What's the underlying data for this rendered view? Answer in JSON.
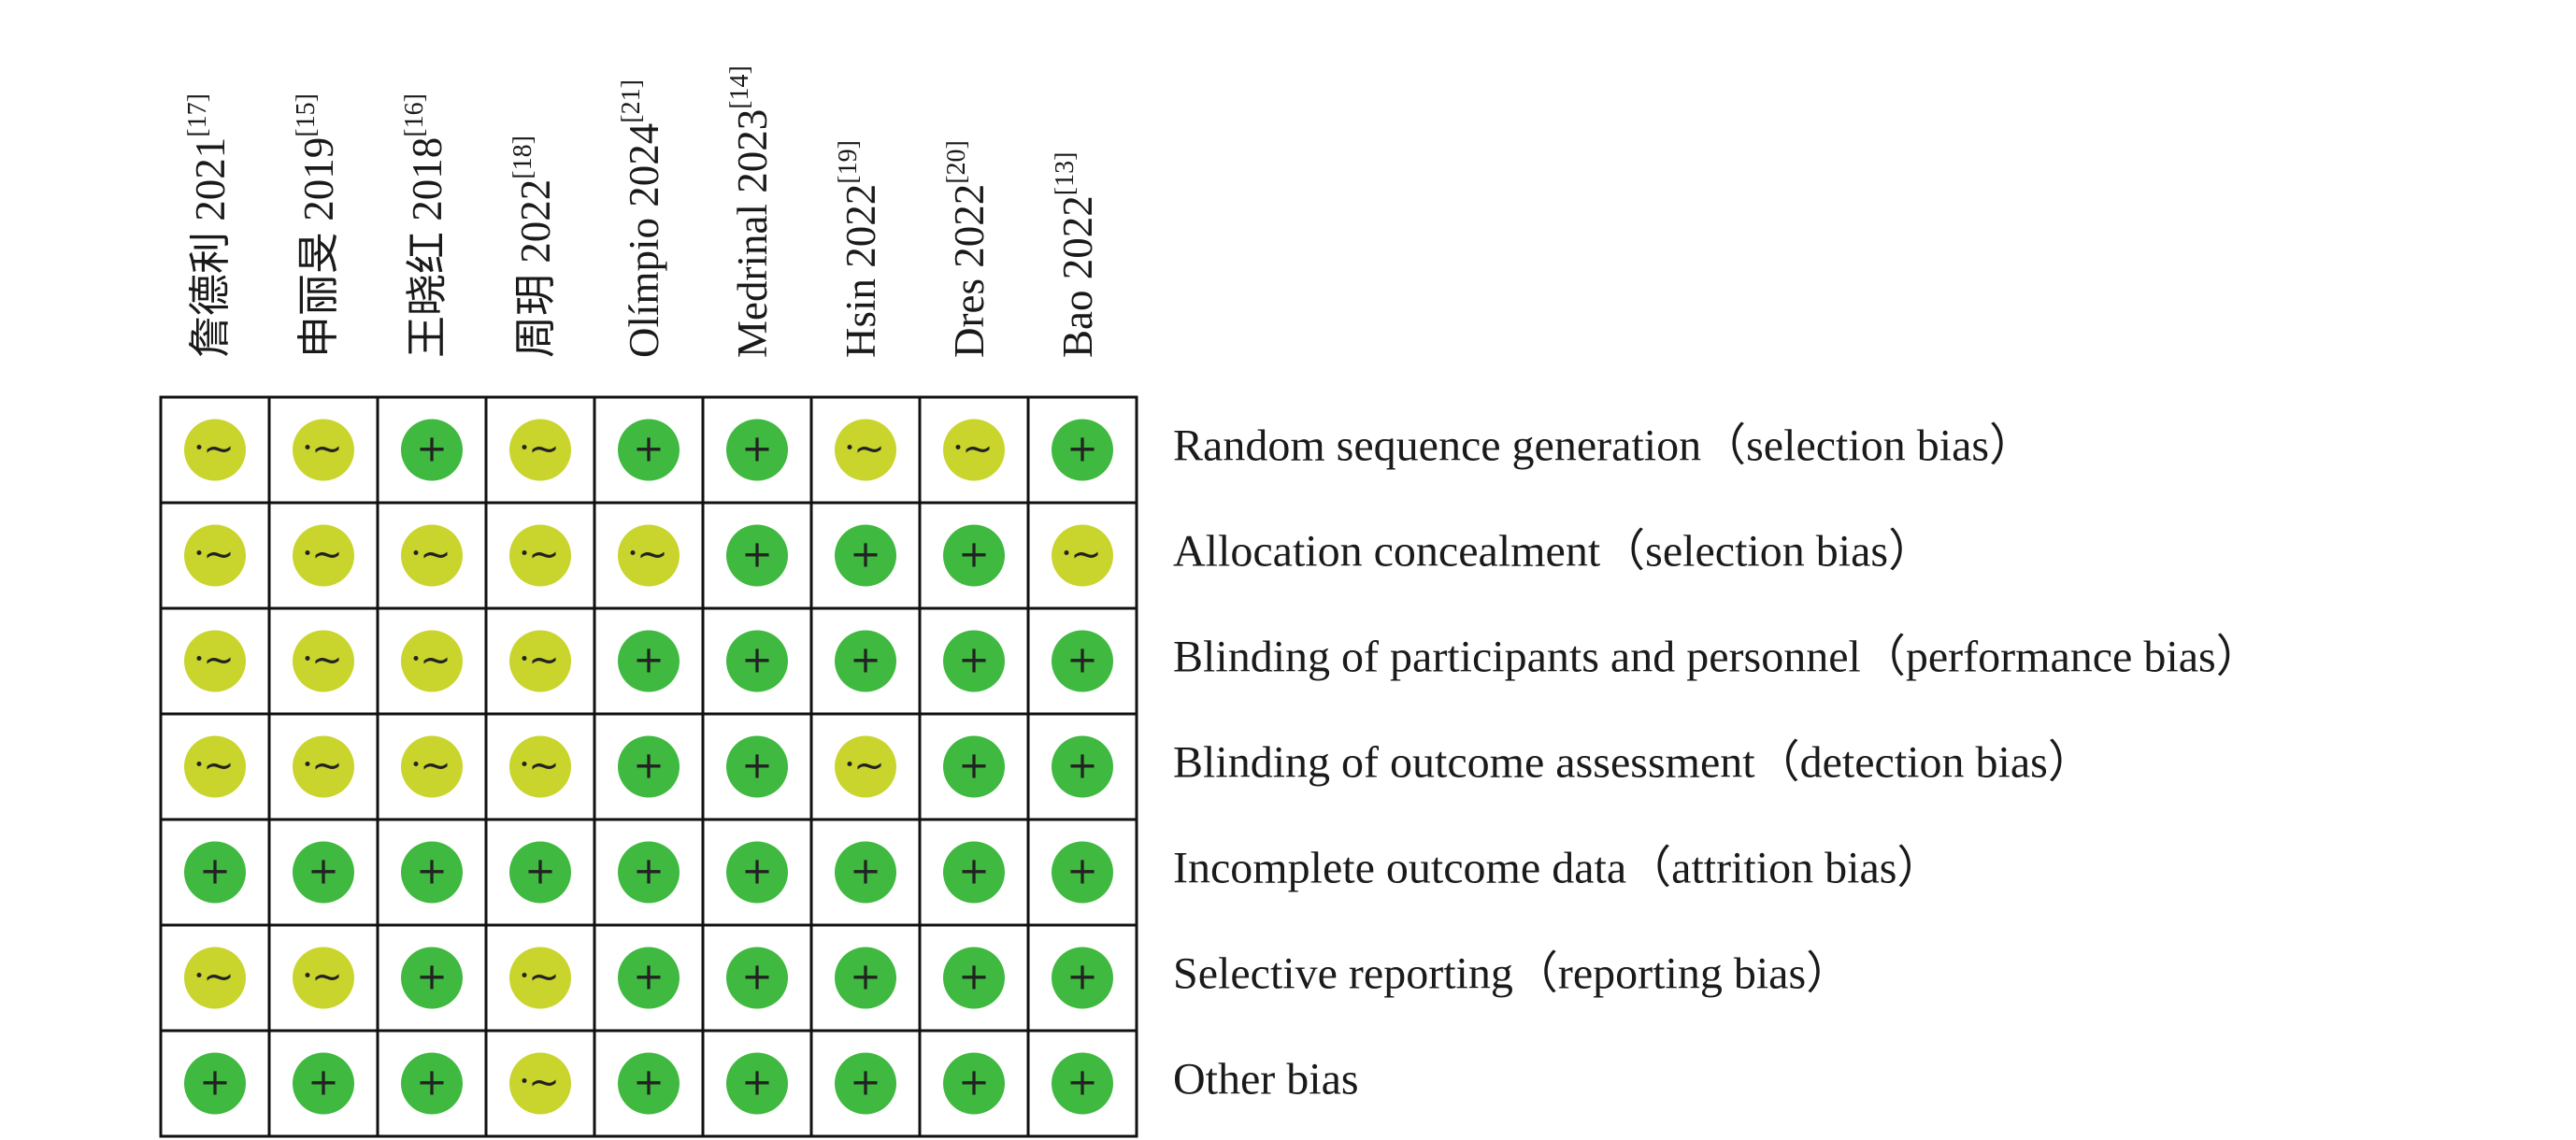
{
  "studies": [
    {
      "name": "詹德利 2021",
      "ref": "[17]"
    },
    {
      "name": "申丽旻 2019",
      "ref": "[15]"
    },
    {
      "name": "王晓红 2018",
      "ref": "[16]"
    },
    {
      "name": "周玥 2022",
      "ref": "[18]"
    },
    {
      "name": "Olímpio 2024",
      "ref": "[21]"
    },
    {
      "name": "Medrinal 2023",
      "ref": "[14]"
    },
    {
      "name": "Hsin 2022",
      "ref": "[19]"
    },
    {
      "name": "Dres 2022",
      "ref": "[20]"
    },
    {
      "name": "Bao 2022",
      "ref": "[13]"
    }
  ],
  "domains": [
    "Random sequence generation（selection bias）",
    "Allocation concealment（selection bias）",
    "Blinding of participants and personnel（performance bias）",
    "Blinding of outcome assessment（detection bias）",
    "Incomplete outcome data（attrition bias）",
    "Selective reporting（reporting bias）",
    "Other bias"
  ],
  "judgments": [
    [
      "~",
      "~",
      "+",
      "~",
      "+",
      "+",
      "~",
      "~",
      "+"
    ],
    [
      "~",
      "~",
      "~",
      "~",
      "~",
      "+",
      "+",
      "+",
      "~"
    ],
    [
      "~",
      "~",
      "~",
      "~",
      "+",
      "+",
      "+",
      "+",
      "+"
    ],
    [
      "~",
      "~",
      "~",
      "~",
      "+",
      "+",
      "~",
      "+",
      "+"
    ],
    [
      "+",
      "+",
      "+",
      "+",
      "+",
      "+",
      "+",
      "+",
      "+"
    ],
    [
      "~",
      "~",
      "+",
      "~",
      "+",
      "+",
      "+",
      "+",
      "+"
    ],
    [
      "+",
      "+",
      "+",
      "~",
      "+",
      "+",
      "+",
      "+",
      "+"
    ]
  ],
  "colors": {
    "low": "#3fb93f",
    "unclear": "#c9d52c"
  }
}
